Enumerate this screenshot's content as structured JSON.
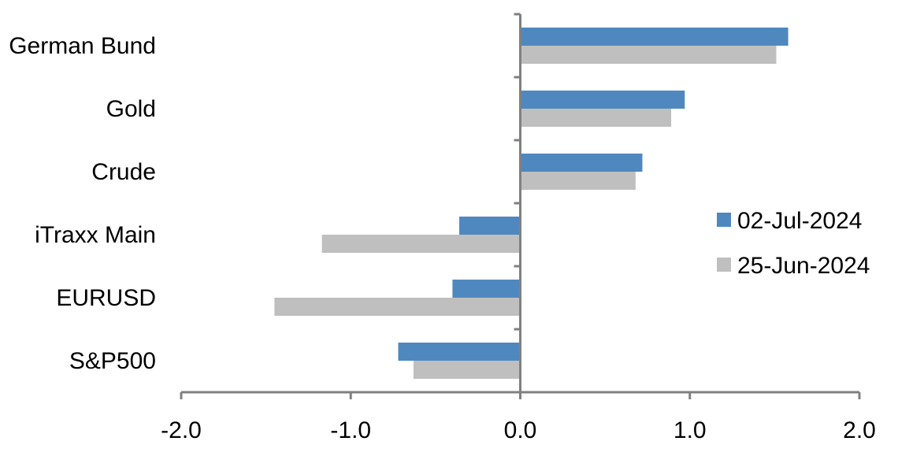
{
  "chart_data": {
    "type": "bar",
    "orientation": "horizontal",
    "categories": [
      "German Bund",
      "Gold",
      "Crude",
      "iTraxx Main",
      "EURUSD",
      "S&P500"
    ],
    "series": [
      {
        "name": "02-Jul-2024",
        "color": "#4F88BE",
        "values": [
          1.58,
          0.97,
          0.72,
          -0.36,
          -0.4,
          -0.72
        ]
      },
      {
        "name": "25-Jun-2024",
        "color": "#BFBFBF",
        "values": [
          1.51,
          0.89,
          0.68,
          -1.17,
          -1.45,
          -0.63
        ]
      }
    ],
    "xlim": [
      -2.0,
      2.0
    ],
    "xticks": [
      "-2.0",
      "-1.0",
      "0.0",
      "1.0",
      "2.0"
    ],
    "xtick_values": [
      -2,
      -1,
      0,
      1,
      2
    ],
    "grid": false,
    "legend_position": "right",
    "axis_color": "#808080"
  }
}
